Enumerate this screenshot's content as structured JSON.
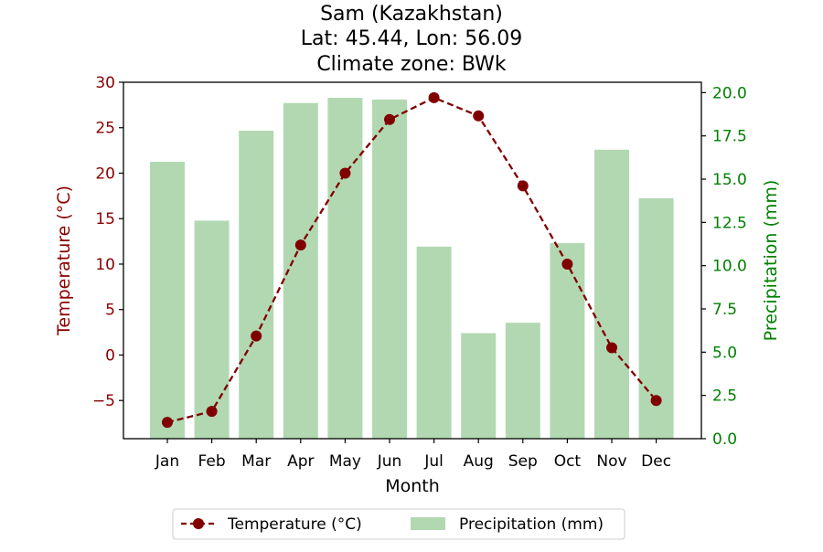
{
  "chart_data": {
    "type": "bar+line",
    "title_lines": [
      "Sam (Kazakhstan)",
      "Lat: 45.44, Lon: 56.09",
      "Climate zone: BWk"
    ],
    "xlabel": "Month",
    "ylabel_left": "Temperature (°C)",
    "ylabel_right": "Precipitation (mm)",
    "categories": [
      "Jan",
      "Feb",
      "Mar",
      "Apr",
      "May",
      "Jun",
      "Jul",
      "Aug",
      "Sep",
      "Oct",
      "Nov",
      "Dec"
    ],
    "left_axis": {
      "ylim": [
        -9.2,
        30.0
      ],
      "ticks": [
        -5,
        0,
        5,
        10,
        15,
        20,
        25,
        30
      ],
      "tick_labels": [
        "−5",
        "0",
        "5",
        "10",
        "15",
        "20",
        "25",
        "30"
      ]
    },
    "right_axis": {
      "ylim": [
        0.0,
        20.6
      ],
      "ticks": [
        0.0,
        2.5,
        5.0,
        7.5,
        10.0,
        12.5,
        15.0,
        17.5,
        20.0
      ],
      "tick_labels": [
        "0.0",
        "2.5",
        "5.0",
        "7.5",
        "10.0",
        "12.5",
        "15.0",
        "17.5",
        "20.0"
      ]
    },
    "series": [
      {
        "name": "Temperature (°C)",
        "kind": "line",
        "axis": "left",
        "color": "#800000",
        "values": [
          -7.4,
          -6.2,
          2.1,
          12.1,
          20.0,
          25.9,
          28.3,
          26.3,
          18.6,
          10.0,
          0.8,
          -5.0
        ]
      },
      {
        "name": "Precipitation (mm)",
        "kind": "bar",
        "axis": "right",
        "color": "#b2d8b2",
        "values": [
          16.0,
          12.6,
          17.8,
          19.4,
          19.7,
          19.6,
          11.1,
          6.1,
          6.7,
          11.3,
          16.7,
          13.9
        ]
      }
    ],
    "colors": {
      "left_axis": "#8b0000",
      "right_axis": "#008000",
      "bars": "#b2d8b2",
      "line": "#800000"
    },
    "grid": false,
    "legend_placement": "bottom-center"
  }
}
